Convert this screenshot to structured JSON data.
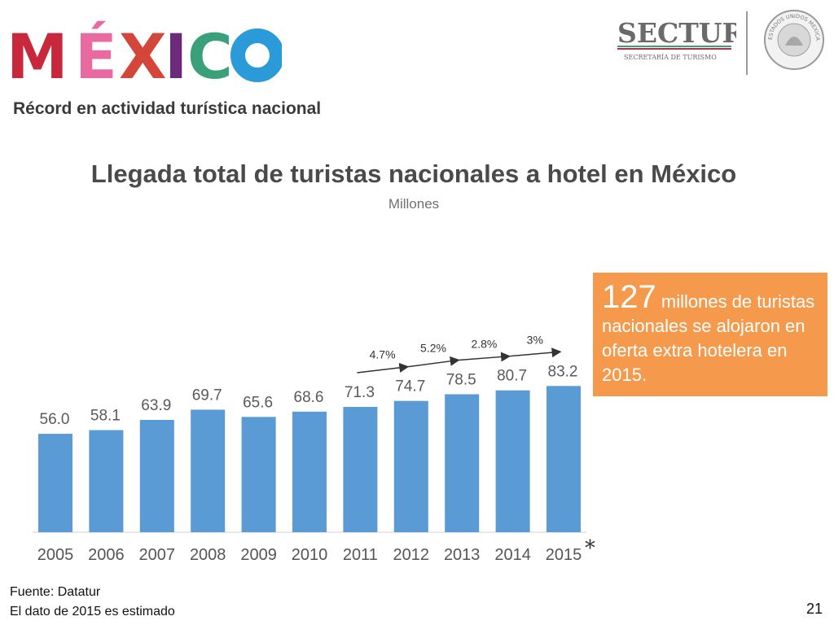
{
  "brand": {
    "logo_text": "MÉXICO",
    "agency_name": "SECTUR",
    "agency_subtitle": "SECRETARÍA DE TURISMO",
    "seal_text": "ESTADOS UNIDOS MEXICANOS",
    "colors": {
      "m": "#c8283c",
      "e": "#e86aa0",
      "x": "#d4463a",
      "i": "#6b2a7a",
      "c": "#3aa07a",
      "o": "#2a9ad8"
    }
  },
  "subtitle": "Récord en actividad turística nacional",
  "chart_data": {
    "type": "bar",
    "title": "Llegada total de turistas nacionales a hotel en México",
    "ylabel": "Millones",
    "categories": [
      "2005",
      "2006",
      "2007",
      "2008",
      "2009",
      "2010",
      "2011",
      "2012",
      "2013",
      "2014",
      "2015"
    ],
    "values": [
      56.0,
      58.1,
      63.9,
      69.7,
      65.6,
      68.6,
      71.3,
      74.7,
      78.5,
      80.7,
      83.2
    ],
    "value_labels": [
      "56.0",
      "58.1",
      "63.9",
      "69.7",
      "65.6",
      "68.6",
      "71.3",
      "74.7",
      "78.5",
      "80.7",
      "83.2"
    ],
    "ylim": [
      0,
      100
    ],
    "grid": false,
    "bar_color": "#5b9bd5",
    "growth_annotations": [
      {
        "from": "2011",
        "to": "2012",
        "label": "4.7%"
      },
      {
        "from": "2012",
        "to": "2013",
        "label": "5.2%"
      },
      {
        "from": "2013",
        "to": "2014",
        "label": "2.8%"
      },
      {
        "from": "2014",
        "to": "2015",
        "label": "3%"
      }
    ],
    "footnote_marker": "*"
  },
  "callout": {
    "number": "127",
    "text": "millones de turistas nacionales se alojaron en oferta extra hotelera en 2015.",
    "color": "#f59a4d"
  },
  "source": {
    "line1": "Fuente: Datatur",
    "line2": "El dato de 2015 es estimado"
  },
  "page_number": "21"
}
